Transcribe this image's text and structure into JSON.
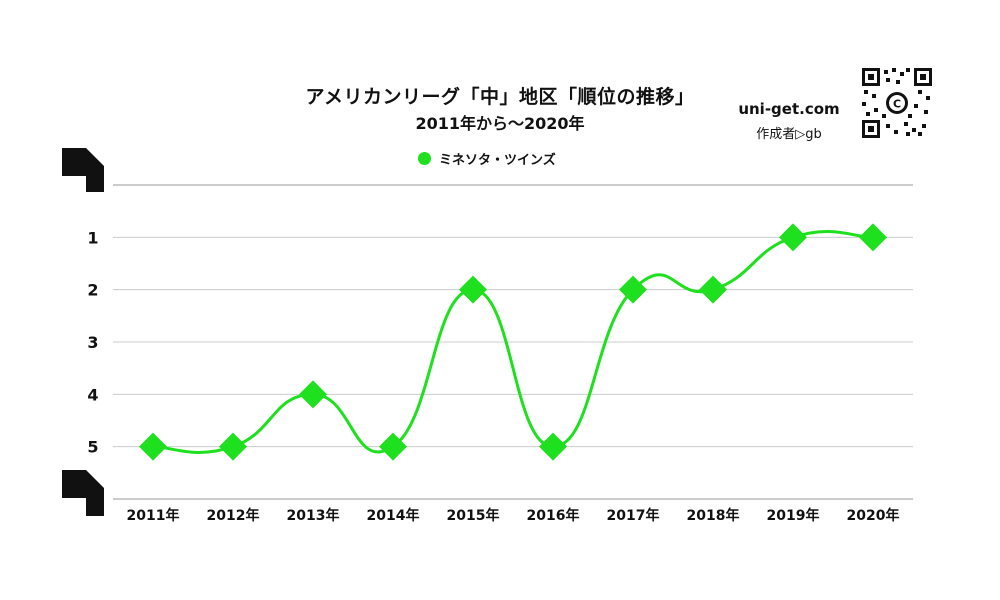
{
  "header": {
    "title": "アメリカンリーグ「中」地区「順位の推移」",
    "subtitle": "2011年から～2020年",
    "site": "uni-get.com",
    "author": "作成者▷gb"
  },
  "colors": {
    "series": "#1ee01e",
    "grid": "#cccccc",
    "axis": "#999999",
    "text": "#111111"
  },
  "icons": {
    "qr": "qr-code-icon",
    "corner_top": "corner-bracket-top-icon",
    "corner_bottom": "corner-bracket-bottom-icon"
  },
  "chart_data": {
    "type": "line",
    "title": "アメリカンリーグ「中」地区「順位の推移」",
    "subtitle": "2011年から～2020年",
    "categories": [
      "2011年",
      "2012年",
      "2013年",
      "2014年",
      "2015年",
      "2016年",
      "2017年",
      "2018年",
      "2019年",
      "2020年"
    ],
    "series": [
      {
        "name": "ミネソタ・ツインズ",
        "values": [
          5,
          5,
          4,
          5,
          2,
          5,
          2,
          2,
          1,
          1
        ],
        "color": "#1ee01e",
        "marker": "diamond",
        "smooth": true
      }
    ],
    "yticks": [
      "1",
      "2",
      "3",
      "4",
      "5"
    ],
    "ylim": [
      0,
      6
    ],
    "y_reversed": true,
    "grid": true,
    "legend": "top-center"
  }
}
